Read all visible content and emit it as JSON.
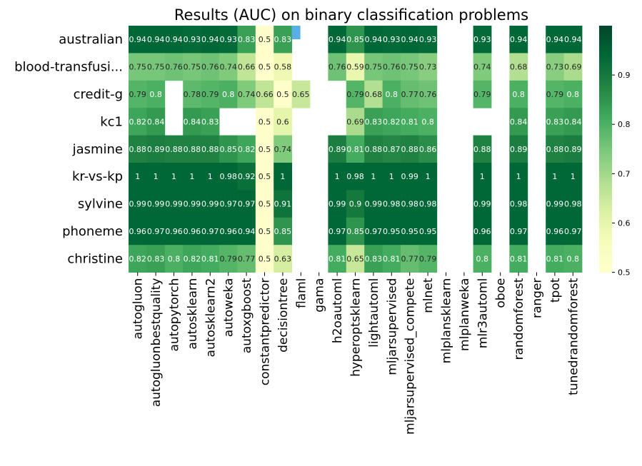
{
  "chart_data": {
    "type": "heatmap",
    "title": "Results (AUC) on  binary classification problems",
    "rows": [
      "australian",
      "blood-transfusi...",
      "credit-g",
      "kc1",
      "jasmine",
      "kr-vs-kp",
      "sylvine",
      "phoneme",
      "christine"
    ],
    "columns": [
      "autogluon",
      "autogluonbestquality",
      "autopytorch",
      "autosklearn",
      "autosklearn2",
      "autoweka",
      "autoxgboost",
      "constantpredictor",
      "decisiontree",
      "flaml",
      "gama",
      "h2oautoml",
      "hyperoptsklearn",
      "lightautoml",
      "mljarsupervised",
      "mljarsupervised_compete",
      "mlnet",
      "mlplansklearn",
      "mlplanweka",
      "mlr3automl",
      "oboe",
      "randomforest",
      "ranger",
      "tpot",
      "tunedrandomforest"
    ],
    "values": [
      [
        0.94,
        0.94,
        0.94,
        0.93,
        0.94,
        0.93,
        0.83,
        0.5,
        0.83,
        null,
        null,
        0.94,
        0.85,
        0.94,
        0.93,
        0.94,
        0.93,
        null,
        null,
        0.93,
        null,
        0.94,
        null,
        0.94,
        0.94
      ],
      [
        0.75,
        0.75,
        0.76,
        0.75,
        0.76,
        0.74,
        0.66,
        0.5,
        0.58,
        null,
        null,
        0.76,
        0.59,
        0.75,
        0.76,
        0.75,
        0.73,
        null,
        null,
        0.74,
        null,
        0.68,
        null,
        0.73,
        0.69
      ],
      [
        0.79,
        0.8,
        null,
        0.78,
        0.79,
        0.8,
        0.74,
        0.66,
        0.5,
        0.65,
        null,
        null,
        0.79,
        0.68,
        0.8,
        0.77,
        0.76,
        null,
        null,
        0.79,
        null,
        0.8,
        null,
        0.79,
        0.8
      ],
      [
        0.82,
        0.84,
        null,
        0.84,
        0.83,
        null,
        null,
        0.5,
        0.6,
        null,
        null,
        null,
        0.69,
        0.83,
        0.82,
        0.81,
        0.8,
        null,
        null,
        null,
        null,
        0.84,
        null,
        0.83,
        0.84
      ],
      [
        0.88,
        0.89,
        0.88,
        0.88,
        0.88,
        0.85,
        0.82,
        0.5,
        0.74,
        null,
        null,
        0.89,
        0.81,
        0.88,
        0.87,
        0.88,
        0.86,
        null,
        null,
        0.88,
        null,
        0.89,
        null,
        0.88,
        0.89
      ],
      [
        1,
        1,
        1,
        1,
        1,
        0.98,
        0.92,
        0.5,
        1,
        null,
        null,
        1,
        0.98,
        1,
        1,
        0.99,
        1,
        null,
        null,
        1,
        null,
        1,
        null,
        1,
        1
      ],
      [
        0.99,
        0.99,
        0.99,
        0.99,
        0.99,
        0.97,
        0.97,
        0.5,
        0.91,
        null,
        null,
        0.99,
        0.9,
        0.99,
        0.98,
        0.98,
        0.98,
        null,
        null,
        0.99,
        null,
        0.98,
        null,
        0.99,
        0.98
      ],
      [
        0.96,
        0.97,
        0.96,
        0.96,
        0.97,
        0.96,
        0.94,
        0.5,
        0.85,
        null,
        null,
        0.97,
        0.85,
        0.97,
        0.95,
        0.95,
        0.95,
        null,
        null,
        0.96,
        null,
        0.97,
        null,
        0.96,
        0.97
      ],
      [
        0.82,
        0.83,
        0.8,
        0.82,
        0.81,
        0.79,
        0.77,
        0.5,
        0.63,
        null,
        null,
        0.81,
        0.65,
        0.83,
        0.81,
        0.77,
        0.79,
        null,
        null,
        0.8,
        null,
        0.81,
        null,
        0.81,
        0.8
      ]
    ],
    "special_cells": [
      {
        "row": 0,
        "col": 9,
        "color": "#5aaee8"
      }
    ],
    "colormap": "YlGn",
    "color_range": [
      0.5,
      1.0
    ],
    "colorbar_ticks": [
      0.5,
      0.6,
      0.7,
      0.8,
      0.9
    ],
    "colors": {
      "low": "#ffffcc",
      "mid": "#78c679",
      "high": "#006837",
      "background": "#ffffff"
    }
  }
}
